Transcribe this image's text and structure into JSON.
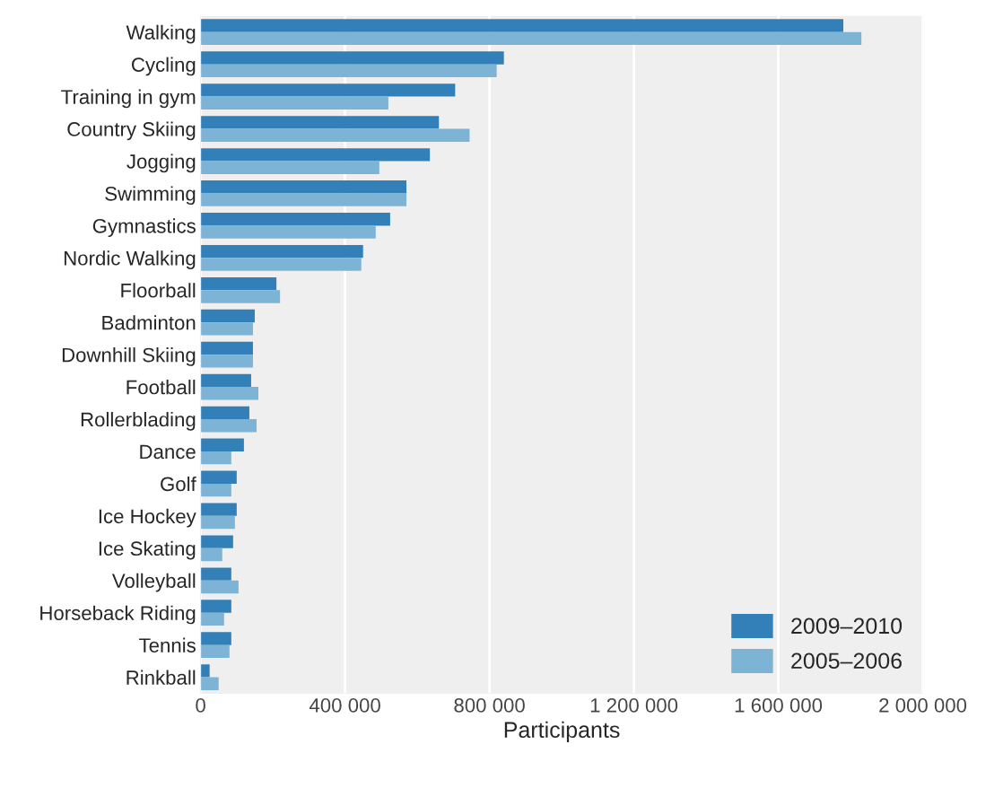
{
  "chart_data": {
    "type": "bar",
    "orientation": "horizontal",
    "xlabel": "Participants",
    "categories": [
      "Walking",
      "Cycling",
      "Training in gym",
      "Country Skiing",
      "Jogging",
      "Swimming",
      "Gymnastics",
      "Nordic Walking",
      "Floorball",
      "Badminton",
      "Downhill Skiing",
      "Football",
      "Rollerblading",
      "Dance",
      "Golf",
      "Ice Hockey",
      "Ice Skating",
      "Volleyball",
      "Horseback Riding",
      "Tennis",
      "Rinkball"
    ],
    "series": [
      {
        "name": "2009–2010",
        "color": "#3380b8",
        "values": [
          1780000,
          840000,
          705000,
          660000,
          635000,
          570000,
          525000,
          450000,
          210000,
          150000,
          145000,
          140000,
          135000,
          120000,
          100000,
          100000,
          90000,
          85000,
          85000,
          85000,
          25000
        ]
      },
      {
        "name": "2005–2006",
        "color": "#7db3d4",
        "values": [
          1830000,
          820000,
          520000,
          745000,
          495000,
          570000,
          485000,
          445000,
          220000,
          145000,
          145000,
          160000,
          155000,
          85000,
          85000,
          95000,
          60000,
          105000,
          65000,
          80000,
          50000
        ]
      }
    ],
    "xlim": [
      0,
      2000000
    ],
    "xticks": [
      0,
      {
        "value": 400000,
        "label": "400 000"
      },
      {
        "value": 800000,
        "label": "800 000"
      },
      {
        "value": 1200000,
        "label": "1 200 000"
      },
      {
        "value": 1600000,
        "label": "1 600 000"
      },
      {
        "value": 2000000,
        "label": "2 000 000"
      }
    ],
    "grid": "x",
    "legend": "bottom right"
  }
}
